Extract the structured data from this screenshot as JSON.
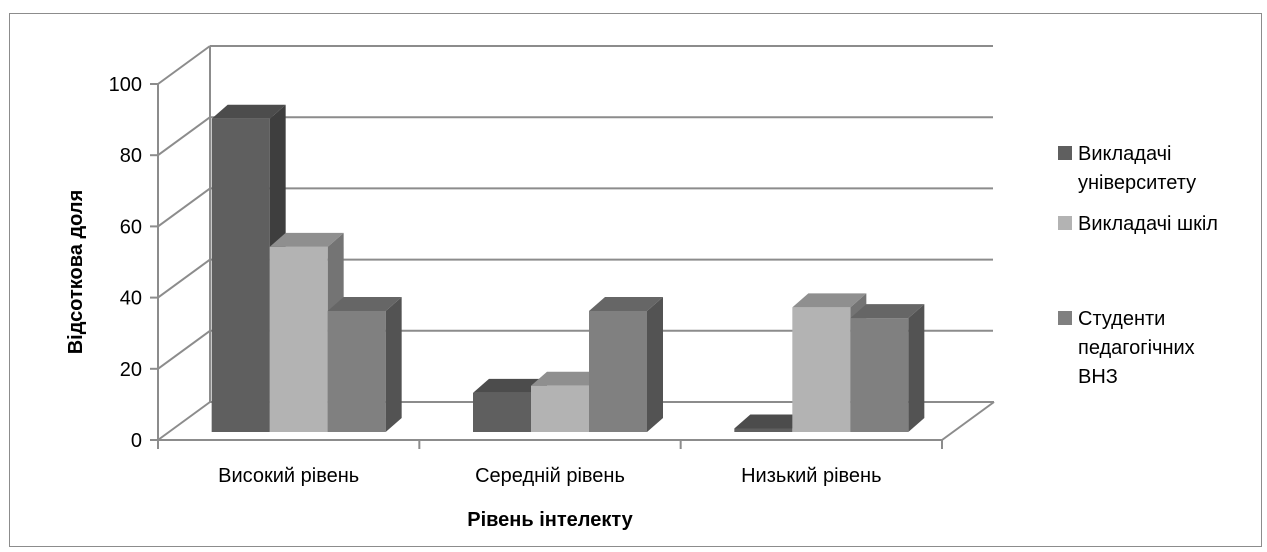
{
  "page": {
    "top_fragment_text": "",
    "frame_border_color": "#8c8c8c"
  },
  "chart_data": {
    "type": "bar",
    "style": "3d-clustered-column",
    "title": "",
    "xlabel": "Рівень інтелекту",
    "ylabel": "Відсоткова доля",
    "categories": [
      "Високий рівень",
      "Середній рівень",
      "Низький рівень"
    ],
    "series": [
      {
        "name": "Викладачі університету",
        "values": [
          88,
          11,
          1
        ],
        "color": "#5f5f5f"
      },
      {
        "name": "Викладачі шкіл",
        "values": [
          52,
          13,
          35
        ],
        "color": "#b3b3b3"
      },
      {
        "name": "Студенти педагогічних ВНЗ",
        "values": [
          34,
          34,
          32
        ],
        "color": "#808080"
      }
    ],
    "ylim": [
      0,
      100
    ],
    "yticks": [
      0,
      20,
      40,
      60,
      80,
      100
    ],
    "grid": true,
    "legend_position": "right"
  }
}
